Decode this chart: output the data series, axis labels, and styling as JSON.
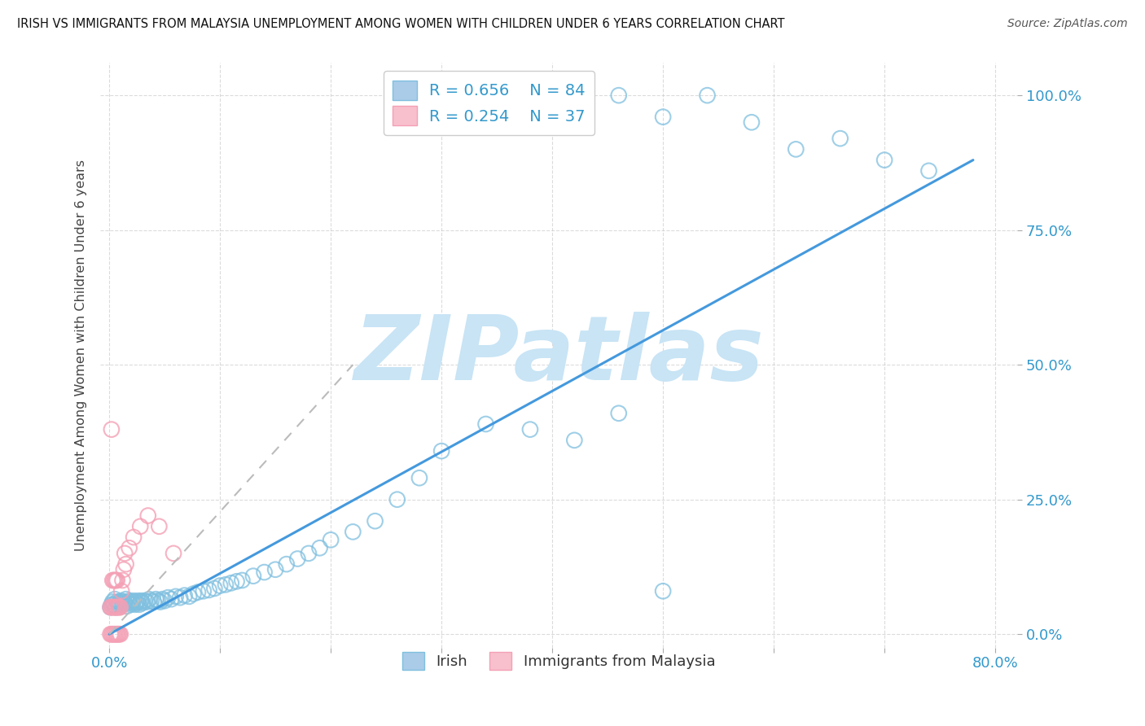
{
  "title": "IRISH VS IMMIGRANTS FROM MALAYSIA UNEMPLOYMENT AMONG WOMEN WITH CHILDREN UNDER 6 YEARS CORRELATION CHART",
  "source": "Source: ZipAtlas.com",
  "ylabel": "Unemployment Among Women with Children Under 6 years",
  "irish_R": 0.656,
  "irish_N": 84,
  "malaysia_R": 0.254,
  "malaysia_N": 37,
  "irish_color": "#7fbfdf",
  "malaysia_color": "#f4a0b5",
  "irish_line_color": "#4499dd",
  "malaysia_line_color": "#dd8899",
  "background_color": "#ffffff",
  "grid_color": "#cccccc",
  "watermark": "ZIPatlas",
  "watermark_color": "#c8e4f5",
  "irish_x": [
    0.001,
    0.002,
    0.003,
    0.004,
    0.005,
    0.006,
    0.007,
    0.008,
    0.009,
    0.01,
    0.011,
    0.012,
    0.013,
    0.014,
    0.015,
    0.016,
    0.017,
    0.018,
    0.019,
    0.02,
    0.021,
    0.022,
    0.023,
    0.024,
    0.025,
    0.026,
    0.027,
    0.028,
    0.029,
    0.03,
    0.032,
    0.034,
    0.036,
    0.038,
    0.04,
    0.042,
    0.044,
    0.046,
    0.048,
    0.05,
    0.053,
    0.056,
    0.06,
    0.064,
    0.068,
    0.072,
    0.076,
    0.08,
    0.085,
    0.09,
    0.095,
    0.1,
    0.105,
    0.11,
    0.115,
    0.12,
    0.13,
    0.14,
    0.15,
    0.16,
    0.17,
    0.18,
    0.19,
    0.2,
    0.22,
    0.24,
    0.26,
    0.28,
    0.3,
    0.34,
    0.38,
    0.42,
    0.46,
    0.5,
    0.54,
    0.58,
    0.62,
    0.66,
    0.7,
    0.74,
    0.38,
    0.42,
    0.46,
    0.5
  ],
  "irish_y": [
    0.05,
    0.055,
    0.06,
    0.055,
    0.065,
    0.05,
    0.06,
    0.055,
    0.06,
    0.058,
    0.062,
    0.055,
    0.06,
    0.058,
    0.065,
    0.052,
    0.058,
    0.062,
    0.055,
    0.06,
    0.058,
    0.062,
    0.055,
    0.06,
    0.058,
    0.062,
    0.055,
    0.06,
    0.062,
    0.058,
    0.062,
    0.06,
    0.065,
    0.062,
    0.06,
    0.065,
    0.062,
    0.06,
    0.065,
    0.062,
    0.068,
    0.065,
    0.07,
    0.068,
    0.072,
    0.07,
    0.075,
    0.078,
    0.08,
    0.082,
    0.085,
    0.09,
    0.092,
    0.095,
    0.098,
    0.1,
    0.108,
    0.115,
    0.12,
    0.13,
    0.14,
    0.15,
    0.16,
    0.175,
    0.19,
    0.21,
    0.25,
    0.29,
    0.34,
    0.39,
    1.0,
    1.0,
    1.0,
    0.96,
    1.0,
    0.95,
    0.9,
    0.92,
    0.88,
    0.86,
    0.38,
    0.36,
    0.41,
    0.08
  ],
  "malaysia_x": [
    0.001,
    0.001,
    0.002,
    0.002,
    0.003,
    0.003,
    0.003,
    0.004,
    0.004,
    0.004,
    0.005,
    0.005,
    0.005,
    0.006,
    0.006,
    0.006,
    0.007,
    0.007,
    0.007,
    0.008,
    0.008,
    0.009,
    0.009,
    0.01,
    0.01,
    0.011,
    0.012,
    0.013,
    0.014,
    0.015,
    0.018,
    0.022,
    0.028,
    0.035,
    0.045,
    0.058,
    0.002
  ],
  "malaysia_y": [
    0.0,
    0.05,
    0.0,
    0.05,
    0.0,
    0.05,
    0.1,
    0.0,
    0.05,
    0.1,
    0.0,
    0.05,
    0.1,
    0.0,
    0.05,
    0.1,
    0.0,
    0.05,
    0.1,
    0.0,
    0.05,
    0.0,
    0.05,
    0.0,
    0.05,
    0.08,
    0.1,
    0.12,
    0.15,
    0.13,
    0.16,
    0.18,
    0.2,
    0.22,
    0.2,
    0.15,
    0.38
  ],
  "irish_line_x": [
    0.0,
    0.78
  ],
  "irish_line_y": [
    0.0,
    0.88
  ],
  "malaysia_line_x": [
    0.0,
    0.22
  ],
  "malaysia_line_y": [
    0.0,
    0.5
  ],
  "xlim": [
    -0.008,
    0.82
  ],
  "ylim": [
    -0.025,
    1.06
  ],
  "xtick_positions": [
    0.0,
    0.1,
    0.2,
    0.3,
    0.4,
    0.5,
    0.6,
    0.7,
    0.8
  ],
  "xtick_labels": [
    "0.0%",
    "",
    "",
    "",
    "",
    "",
    "",
    "",
    "80.0%"
  ],
  "ytick_positions": [
    0.0,
    0.25,
    0.5,
    0.75,
    1.0
  ],
  "ytick_labels": [
    "0.0%",
    "25.0%",
    "50.0%",
    "75.0%",
    "100.0%"
  ]
}
